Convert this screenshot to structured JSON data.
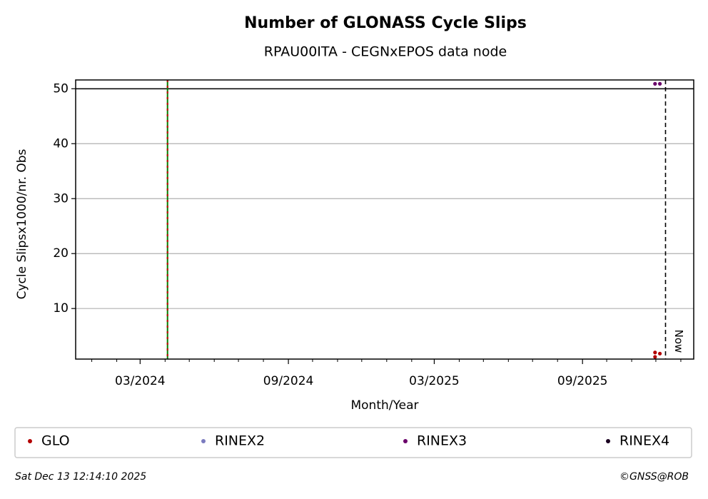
{
  "chart_data": {
    "type": "scatter",
    "title": "Number of GLONASS Cycle Slips",
    "subtitle": "RPAU00ITA - CEGNxEPOS data node",
    "x_label": "Month/Year",
    "y_label": "Cycle Slipsx1000/nr. Obs",
    "xlim": [
      "2023-12-12",
      "2026-01-17"
    ],
    "ylim": [
      0.8,
      51.6
    ],
    "xticks": [
      {
        "value": "2024-03-01",
        "label": "03/2024"
      },
      {
        "value": "2024-09-01",
        "label": "09/2024"
      },
      {
        "value": "2025-03-01",
        "label": "03/2025"
      },
      {
        "value": "2025-09-01",
        "label": "09/2025"
      }
    ],
    "xminorticks": [
      "2024-01-01",
      "2024-02-01",
      "2024-04-01",
      "2024-05-01",
      "2024-06-01",
      "2024-07-01",
      "2024-08-01",
      "2024-10-01",
      "2024-11-01",
      "2024-12-01",
      "2025-01-01",
      "2025-02-01",
      "2025-04-01",
      "2025-05-01",
      "2025-06-01",
      "2025-07-01",
      "2025-08-01",
      "2025-10-01",
      "2025-11-01",
      "2025-12-01",
      "2026-01-01"
    ],
    "yticks": [
      10,
      20,
      30,
      40,
      50
    ],
    "grid": true,
    "limit_line": 50,
    "event_line": "2024-04-04",
    "now": {
      "x": "2025-12-13",
      "label": "Now"
    },
    "series": [
      {
        "name": "GLO",
        "color": "#b30000",
        "x": [
          "2025-11-30",
          "2025-11-30",
          "2025-12-06"
        ],
        "values": [
          2.0,
          1.2,
          1.8
        ]
      },
      {
        "name": "RINEX2",
        "color": "#7b7bbf",
        "x": [],
        "values": []
      },
      {
        "name": "RINEX3",
        "color": "#6a006a",
        "x": [
          "2025-11-30",
          "2025-12-06"
        ],
        "values": [
          50.9,
          50.9
        ]
      },
      {
        "name": "RINEX4",
        "color": "#1a0020",
        "x": [],
        "values": []
      }
    ],
    "footer_left": "Sat Dec 13 12:14:10 2025",
    "footer_right": "©GNSS@ROB"
  }
}
